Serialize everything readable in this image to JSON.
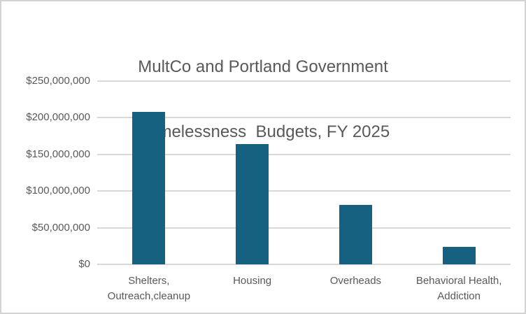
{
  "chart_data": {
    "type": "bar",
    "title_line1": "MultCo and Portland Government",
    "title_line2": "Homelessness  Budgets, FY 2025",
    "categories": [
      [
        "Shelters,",
        "Outreach,cleanup"
      ],
      [
        "Housing"
      ],
      [
        "Overheads"
      ],
      [
        "Behavioral Health,",
        "Addiction"
      ]
    ],
    "values": [
      208000000,
      164000000,
      81000000,
      24000000
    ],
    "ylim": [
      0,
      250000000
    ],
    "ytick_step": 50000000,
    "ytick_labels": [
      "$0",
      "$50,000,000",
      "$100,000,000",
      "$150,000,000",
      "$200,000,000",
      "$250,000,000"
    ],
    "bar_color": "#16617f",
    "gridline_color": "#d9d9d9",
    "text_color": "#595959",
    "grid": true,
    "legend": "none"
  }
}
